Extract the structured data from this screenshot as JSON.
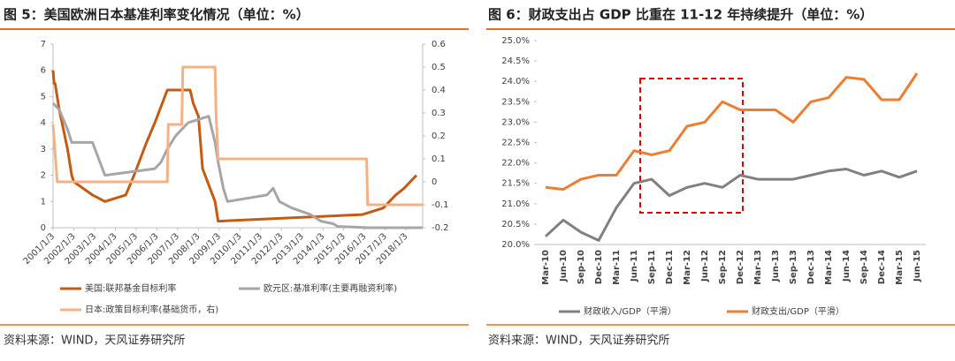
{
  "chart_data": [
    {
      "type": "line",
      "title": "图 5：美国欧洲日本基准利率变化情况（单位：%）",
      "source": "资料来源：WIND，天风证券研究所",
      "xlim": [
        2001,
        2018.8
      ],
      "xticks": [
        {
          "value": 2001,
          "label": "2001/1/3"
        },
        {
          "value": 2002,
          "label": "2002/1/3"
        },
        {
          "value": 2003,
          "label": "2003/1/3"
        },
        {
          "value": 2004,
          "label": "2004/1/3"
        },
        {
          "value": 2005,
          "label": "2005/1/3"
        },
        {
          "value": 2006,
          "label": "2006/1/3"
        },
        {
          "value": 2007,
          "label": "2007/1/3"
        },
        {
          "value": 2008,
          "label": "2008/1/3"
        },
        {
          "value": 2009,
          "label": "2009/1/3"
        },
        {
          "value": 2010,
          "label": "2010/1/3"
        },
        {
          "value": 2011,
          "label": "2011/1/3"
        },
        {
          "value": 2012,
          "label": "2012/1/3"
        },
        {
          "value": 2013,
          "label": "2013/1/3"
        },
        {
          "value": 2014,
          "label": "2014/1/3"
        },
        {
          "value": 2015,
          "label": "2015/1/3"
        },
        {
          "value": 2016,
          "label": "2016/1/3"
        },
        {
          "value": 2017,
          "label": "2017/1/3"
        },
        {
          "value": 2018,
          "label": "2018/1/3"
        }
      ],
      "ylim": [
        0,
        7
      ],
      "yticks": [
        0,
        1,
        2,
        3,
        4,
        5,
        6,
        7
      ],
      "y2lim": [
        -0.2,
        0.6
      ],
      "y2ticks": [
        -0.2,
        -0.1,
        0,
        0.1,
        0.2,
        0.3,
        0.4,
        0.5,
        0.6
      ],
      "series": [
        {
          "name": "美国:联邦基金目标利率",
          "color": "#c55a11",
          "x": [
            2001.0,
            2001.05,
            2001.1,
            2001.3,
            2001.5,
            2001.7,
            2001.9,
            2002.0,
            2002.9,
            2003.5,
            2004.5,
            2004.9,
            2005.5,
            2005.9,
            2006.5,
            2007.6,
            2007.75,
            2008.0,
            2008.2,
            2008.8,
            2008.95,
            2015.9,
            2016.9,
            2017.2,
            2017.5,
            2017.9,
            2018.2,
            2018.5
          ],
          "values": [
            6.0,
            5.5,
            5.5,
            4.5,
            3.75,
            3.0,
            2.0,
            1.75,
            1.25,
            1.0,
            1.25,
            2.0,
            3.25,
            4.0,
            5.25,
            5.25,
            4.75,
            4.25,
            2.25,
            1.0,
            0.25,
            0.5,
            0.75,
            1.0,
            1.25,
            1.5,
            1.75,
            2.0
          ]
        },
        {
          "name": "欧元区:基准利率(主要再融资利率)",
          "color": "#a6a6a6",
          "x": [
            2001.0,
            2001.3,
            2001.7,
            2001.9,
            2002.9,
            2003.5,
            2005.9,
            2006.2,
            2006.5,
            2006.9,
            2007.5,
            2008.5,
            2008.8,
            2008.95,
            2009.2,
            2009.4,
            2011.3,
            2011.6,
            2011.9,
            2012.5,
            2013.4,
            2013.9,
            2014.5,
            2014.7,
            2016.2,
            2018.8
          ],
          "values": [
            4.75,
            4.5,
            3.75,
            3.25,
            3.25,
            2.0,
            2.25,
            2.5,
            3.0,
            3.5,
            4.0,
            4.25,
            3.25,
            2.5,
            1.5,
            1.0,
            1.25,
            1.5,
            1.0,
            0.75,
            0.5,
            0.25,
            0.15,
            0.05,
            0.0,
            0.0
          ]
        },
        {
          "name": "日本:政策目标利率(基础货币，右)",
          "color": "#f4b183",
          "axis": "y2",
          "x": [
            2001.0,
            2001.2,
            2006.5,
            2006.55,
            2007.2,
            2007.25,
            2008.8,
            2008.85,
            2008.95,
            2016.1,
            2016.15,
            2018.8
          ],
          "values": [
            0.25,
            0,
            0,
            0.25,
            0.25,
            0.5,
            0.5,
            0.3,
            0.1,
            0.1,
            -0.1,
            -0.1
          ]
        }
      ]
    },
    {
      "type": "line",
      "title": "图 6：财政支出占 GDP 比重在 11-12 年持续提升（单位：%）",
      "source": "资料来源：WIND，天风证券研究所",
      "categories": [
        "Mar-10",
        "Jun-10",
        "Sep-10",
        "Dec-10",
        "Mar-11",
        "Jun-11",
        "Sep-11",
        "Dec-11",
        "Mar-12",
        "Jun-12",
        "Sep-12",
        "Dec-12",
        "Mar-13",
        "Jun-13",
        "Sep-13",
        "Dec-13",
        "Mar-14",
        "Jun-14",
        "Sep-14",
        "Dec-14",
        "Mar-15",
        "Jun-15"
      ],
      "ylim": [
        20,
        25
      ],
      "yticks": [
        {
          "value": 20,
          "label": "20.0%"
        },
        {
          "value": 20.5,
          "label": "20.5%"
        },
        {
          "value": 21,
          "label": "21.0%"
        },
        {
          "value": 21.5,
          "label": "21.5%"
        },
        {
          "value": 22,
          "label": "22.0%"
        },
        {
          "value": 22.5,
          "label": "22.5%"
        },
        {
          "value": 23,
          "label": "23.0%"
        },
        {
          "value": 23.5,
          "label": "23.5%"
        },
        {
          "value": 24,
          "label": "24.0%"
        },
        {
          "value": 24.5,
          "label": "24.5%"
        },
        {
          "value": 25,
          "label": "25.0%"
        }
      ],
      "series": [
        {
          "name": "财政收入/GDP（平滑）",
          "color": "#808080",
          "values": [
            20.2,
            20.6,
            20.3,
            20.1,
            20.9,
            21.5,
            21.6,
            21.2,
            21.4,
            21.5,
            21.4,
            21.7,
            21.6,
            21.6,
            21.6,
            21.7,
            21.8,
            21.85,
            21.7,
            21.8,
            21.65,
            21.8
          ]
        },
        {
          "name": "财政支出/GDP（平滑）",
          "color": "#ed7d31",
          "values": [
            21.4,
            21.35,
            21.6,
            21.7,
            21.7,
            22.3,
            22.2,
            22.3,
            22.9,
            23.0,
            23.5,
            23.3,
            23.3,
            23.3,
            23.0,
            23.5,
            23.6,
            24.1,
            24.05,
            23.55,
            23.55,
            24.2
          ]
        }
      ]
    }
  ]
}
